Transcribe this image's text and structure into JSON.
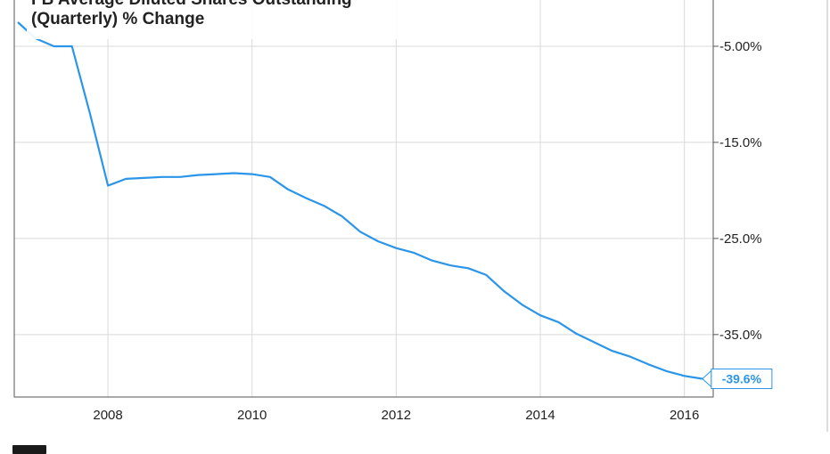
{
  "title": {
    "line1": "FB Average Diluted Shares Outstanding",
    "line2": "(Quarterly) % Change"
  },
  "colors": {
    "line": "#2b95e9",
    "grid": "#d9d9d9",
    "axis": "#555555",
    "text": "#222222"
  },
  "chart_data": {
    "type": "line",
    "title": "FB Average Diluted Shares Outstanding (Quarterly) % Change",
    "xlabel": "",
    "ylabel": "",
    "xlim": [
      2006.7,
      2016.4
    ],
    "ylim": [
      -41.5,
      0
    ],
    "grid": true,
    "x_ticks": [
      2008,
      2010,
      2012,
      2014,
      2016
    ],
    "x_tick_labels": [
      "2008",
      "2010",
      "2012",
      "2014",
      "2016"
    ],
    "y_ticks": [
      -5,
      -15,
      -25,
      -35
    ],
    "y_tick_labels": [
      "-5.00%",
      "-15.0%",
      "-25.0%",
      "-35.0%"
    ],
    "series": [
      {
        "x": [
          2006.75,
          2007.0,
          2007.25,
          2007.5,
          2007.75,
          2008.0,
          2008.25,
          2008.5,
          2008.75,
          2009.0,
          2009.25,
          2009.5,
          2009.75,
          2010.0,
          2010.25,
          2010.5,
          2010.75,
          2011.0,
          2011.25,
          2011.5,
          2011.75,
          2012.0,
          2012.25,
          2012.5,
          2012.75,
          2013.0,
          2013.25,
          2013.5,
          2013.75,
          2014.0,
          2014.25,
          2014.5,
          2014.75,
          2015.0,
          2015.25,
          2015.5,
          2015.75,
          2016.0,
          2016.25
        ],
        "values": [
          -2.5,
          -4.2,
          -5.0,
          -5.0,
          -12.0,
          -19.5,
          -18.8,
          -18.7,
          -18.6,
          -18.6,
          -18.4,
          -18.3,
          -18.2,
          -18.3,
          -18.6,
          -19.9,
          -20.8,
          -21.6,
          -22.7,
          -24.3,
          -25.3,
          -26.0,
          -26.5,
          -27.3,
          -27.8,
          -28.1,
          -28.8,
          -30.5,
          -31.9,
          -33.0,
          -33.7,
          -34.9,
          -35.8,
          -36.7,
          -37.3,
          -38.1,
          -38.8,
          -39.3,
          -39.6
        ]
      }
    ],
    "end_label": "-39.6%"
  }
}
